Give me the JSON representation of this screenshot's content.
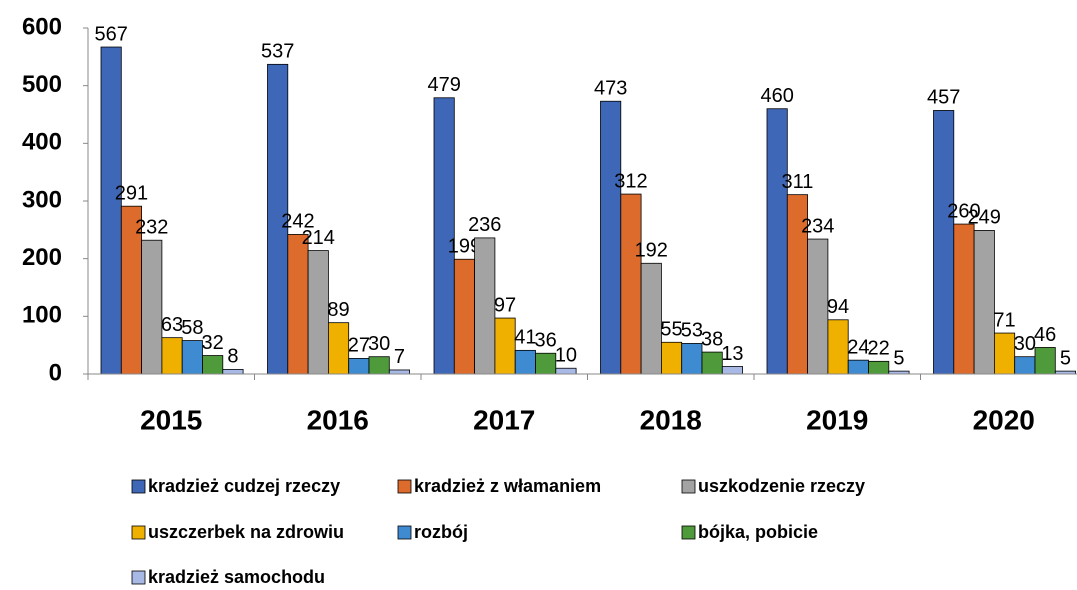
{
  "chart_data": {
    "type": "bar",
    "categories": [
      "2015",
      "2016",
      "2017",
      "2018",
      "2019",
      "2020"
    ],
    "series": [
      {
        "name": "kradzież cudzej rzeczy",
        "color": "#3f67b8",
        "values": [
          567,
          537,
          479,
          473,
          460,
          457
        ]
      },
      {
        "name": "kradzież z włamaniem",
        "color": "#dc6b2c",
        "values": [
          291,
          242,
          199,
          312,
          311,
          260
        ]
      },
      {
        "name": "uszkodzenie rzeczy",
        "color": "#a3a3a3",
        "values": [
          232,
          214,
          236,
          192,
          234,
          249
        ]
      },
      {
        "name": "uszczerbek na zdrowiu",
        "color": "#efb000",
        "values": [
          63,
          89,
          97,
          55,
          94,
          71
        ]
      },
      {
        "name": "rozbój",
        "color": "#3f8bd2",
        "values": [
          58,
          27,
          41,
          53,
          24,
          30
        ]
      },
      {
        "name": "bójka, pobicie",
        "color": "#4f9a3b",
        "values": [
          32,
          30,
          36,
          38,
          22,
          46
        ]
      },
      {
        "name": "kradzież samochodu",
        "color": "#a9b9e6",
        "values": [
          8,
          7,
          10,
          13,
          5,
          5
        ]
      }
    ],
    "ylim": [
      0,
      600
    ],
    "yticks": [
      0,
      100,
      200,
      300,
      400,
      500,
      600
    ],
    "legend": "bottom"
  }
}
